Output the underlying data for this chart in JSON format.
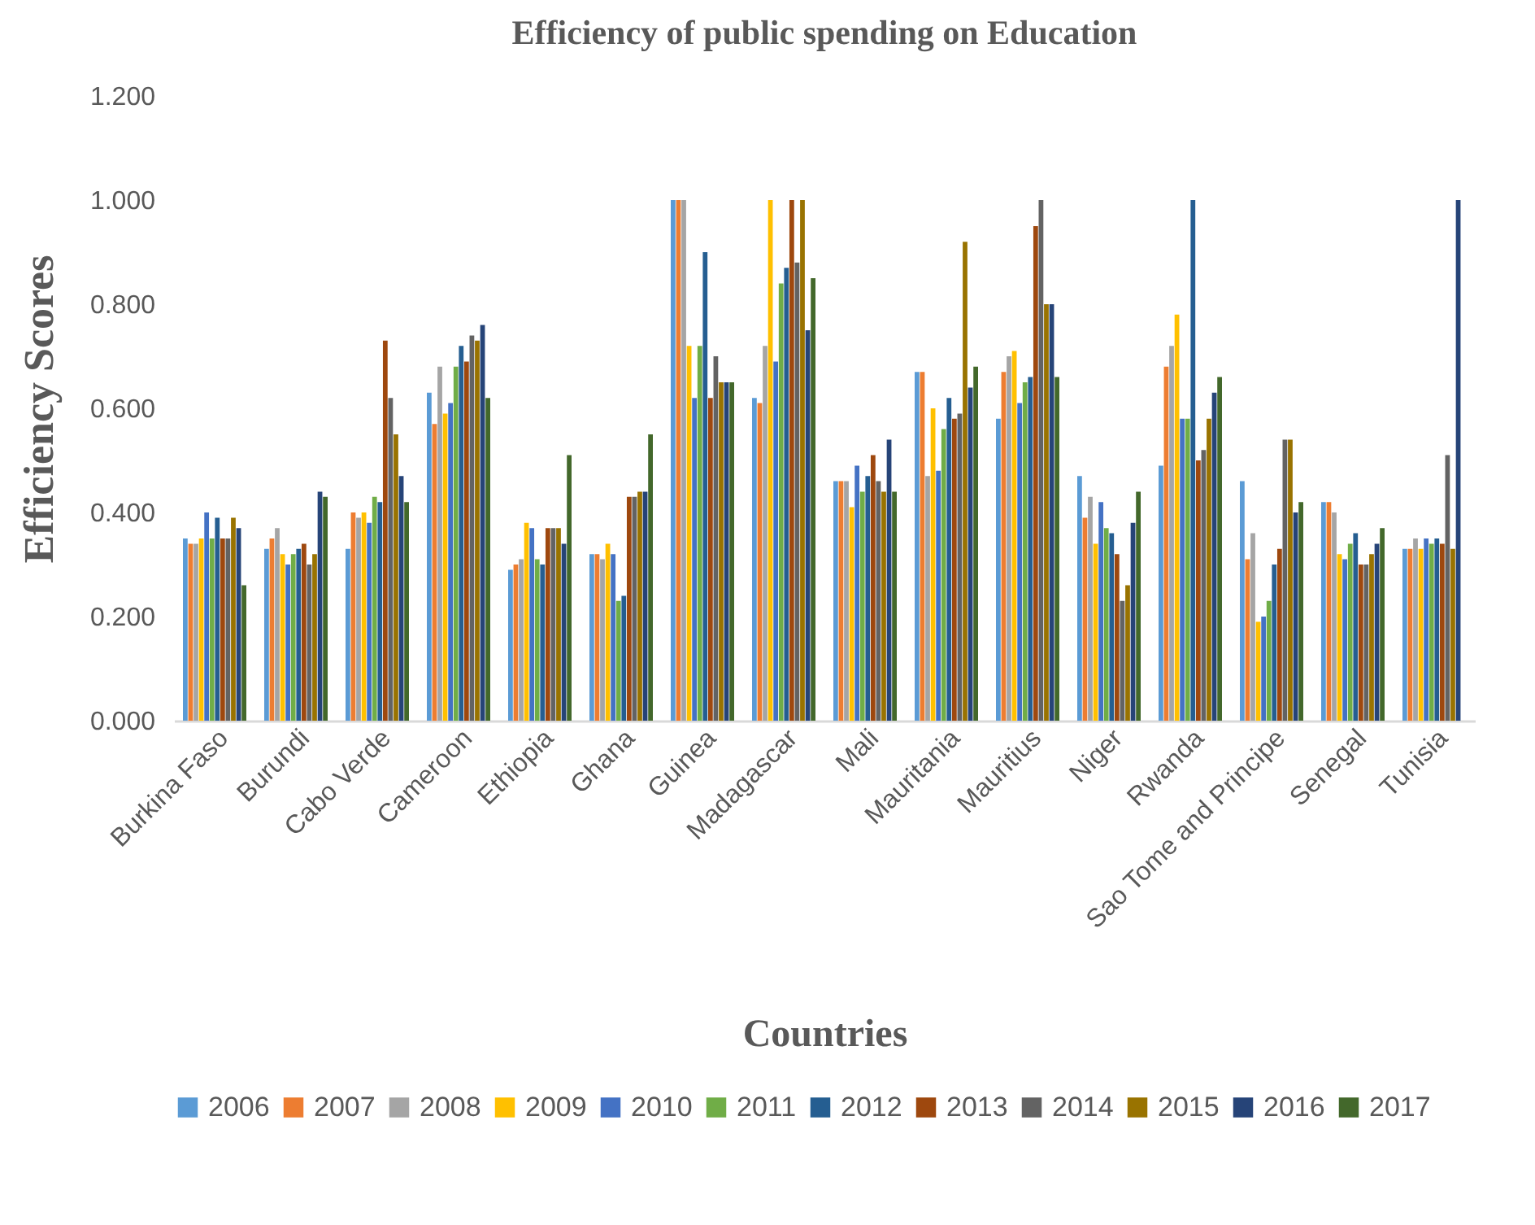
{
  "chart_data": {
    "type": "bar",
    "title": "Efficiency of public spending on Education",
    "xlabel": "Countries",
    "ylabel": "Efficiency Scores",
    "categories": [
      "Burkina Faso",
      "Burundi",
      "Cabo Verde",
      "Cameroon",
      "Ethiopia",
      "Ghana",
      "Guinea",
      "Madagascar",
      "Mali",
      "Mauritania",
      "Mauritius",
      "Niger",
      "Rwanda",
      "Sao Tome and Principe",
      "Senegal",
      "Tunisia"
    ],
    "ylim": [
      0,
      1.2
    ],
    "yticks": [
      {
        "value": 0,
        "label": "0.000"
      },
      {
        "value": 0.2,
        "label": "0.200"
      },
      {
        "value": 0.4,
        "label": "0.400"
      },
      {
        "value": 0.6,
        "label": "0.600"
      },
      {
        "value": 0.8,
        "label": "0.800"
      },
      {
        "value": 1,
        "label": "1.000"
      },
      {
        "value": 1.2,
        "label": "1.200"
      }
    ],
    "grid": false,
    "legend": "bottom",
    "series": [
      {
        "name": "2006",
        "color": "#5b9bd5",
        "values": [
          0.35,
          0.33,
          0.33,
          0.63,
          0.29,
          0.32,
          1.0,
          0.62,
          0.46,
          0.67,
          0.58,
          0.47,
          0.49,
          0.46,
          0.42,
          0.33
        ]
      },
      {
        "name": "2007",
        "color": "#ed7d31",
        "values": [
          0.34,
          0.35,
          0.4,
          0.57,
          0.3,
          0.32,
          1.0,
          0.61,
          0.46,
          0.67,
          0.67,
          0.39,
          0.68,
          0.31,
          0.42,
          0.33
        ]
      },
      {
        "name": "2008",
        "color": "#a5a5a5",
        "values": [
          0.34,
          0.37,
          0.39,
          0.68,
          0.31,
          0.31,
          1.0,
          0.72,
          0.46,
          0.47,
          0.7,
          0.43,
          0.72,
          0.36,
          0.4,
          0.35
        ]
      },
      {
        "name": "2009",
        "color": "#ffc000",
        "values": [
          0.35,
          0.32,
          0.4,
          0.59,
          0.38,
          0.34,
          0.72,
          1.0,
          0.41,
          0.6,
          0.71,
          0.34,
          0.78,
          0.19,
          0.32,
          0.33
        ]
      },
      {
        "name": "2010",
        "color": "#4472c4",
        "values": [
          0.4,
          0.3,
          0.38,
          0.61,
          0.37,
          0.32,
          0.62,
          0.69,
          0.49,
          0.48,
          0.61,
          0.42,
          0.58,
          0.2,
          0.31,
          0.35
        ]
      },
      {
        "name": "2011",
        "color": "#70ad47",
        "values": [
          0.35,
          0.32,
          0.43,
          0.68,
          0.31,
          0.23,
          0.72,
          0.84,
          0.44,
          0.56,
          0.65,
          0.37,
          0.58,
          0.23,
          0.34,
          0.34
        ]
      },
      {
        "name": "2012",
        "color": "#255e91",
        "values": [
          0.39,
          0.33,
          0.42,
          0.72,
          0.3,
          0.24,
          0.9,
          0.87,
          0.47,
          0.62,
          0.66,
          0.36,
          1.0,
          0.3,
          0.36,
          0.35
        ]
      },
      {
        "name": "2013",
        "color": "#9e480e",
        "values": [
          0.35,
          0.34,
          0.73,
          0.69,
          0.37,
          0.43,
          0.62,
          1.0,
          0.51,
          0.58,
          0.95,
          0.32,
          0.5,
          0.33,
          0.3,
          0.34
        ]
      },
      {
        "name": "2014",
        "color": "#636363",
        "values": [
          0.35,
          0.3,
          0.62,
          0.74,
          0.37,
          0.43,
          0.7,
          0.88,
          0.46,
          0.59,
          1.0,
          0.23,
          0.52,
          0.54,
          0.3,
          0.51
        ]
      },
      {
        "name": "2015",
        "color": "#997300",
        "values": [
          0.39,
          0.32,
          0.55,
          0.73,
          0.37,
          0.44,
          0.65,
          1.0,
          0.44,
          0.92,
          0.8,
          0.26,
          0.58,
          0.54,
          0.32,
          0.33
        ]
      },
      {
        "name": "2016",
        "color": "#264478",
        "values": [
          0.37,
          0.44,
          0.47,
          0.76,
          0.34,
          0.44,
          0.65,
          0.75,
          0.54,
          0.64,
          0.8,
          0.38,
          0.63,
          0.4,
          0.34,
          1.0
        ]
      },
      {
        "name": "2017",
        "color": "#43682b",
        "values": [
          0.26,
          0.43,
          0.42,
          0.62,
          0.51,
          0.55,
          0.65,
          0.85,
          0.44,
          0.68,
          0.66,
          0.44,
          0.66,
          0.42,
          0.37,
          null
        ]
      }
    ]
  }
}
